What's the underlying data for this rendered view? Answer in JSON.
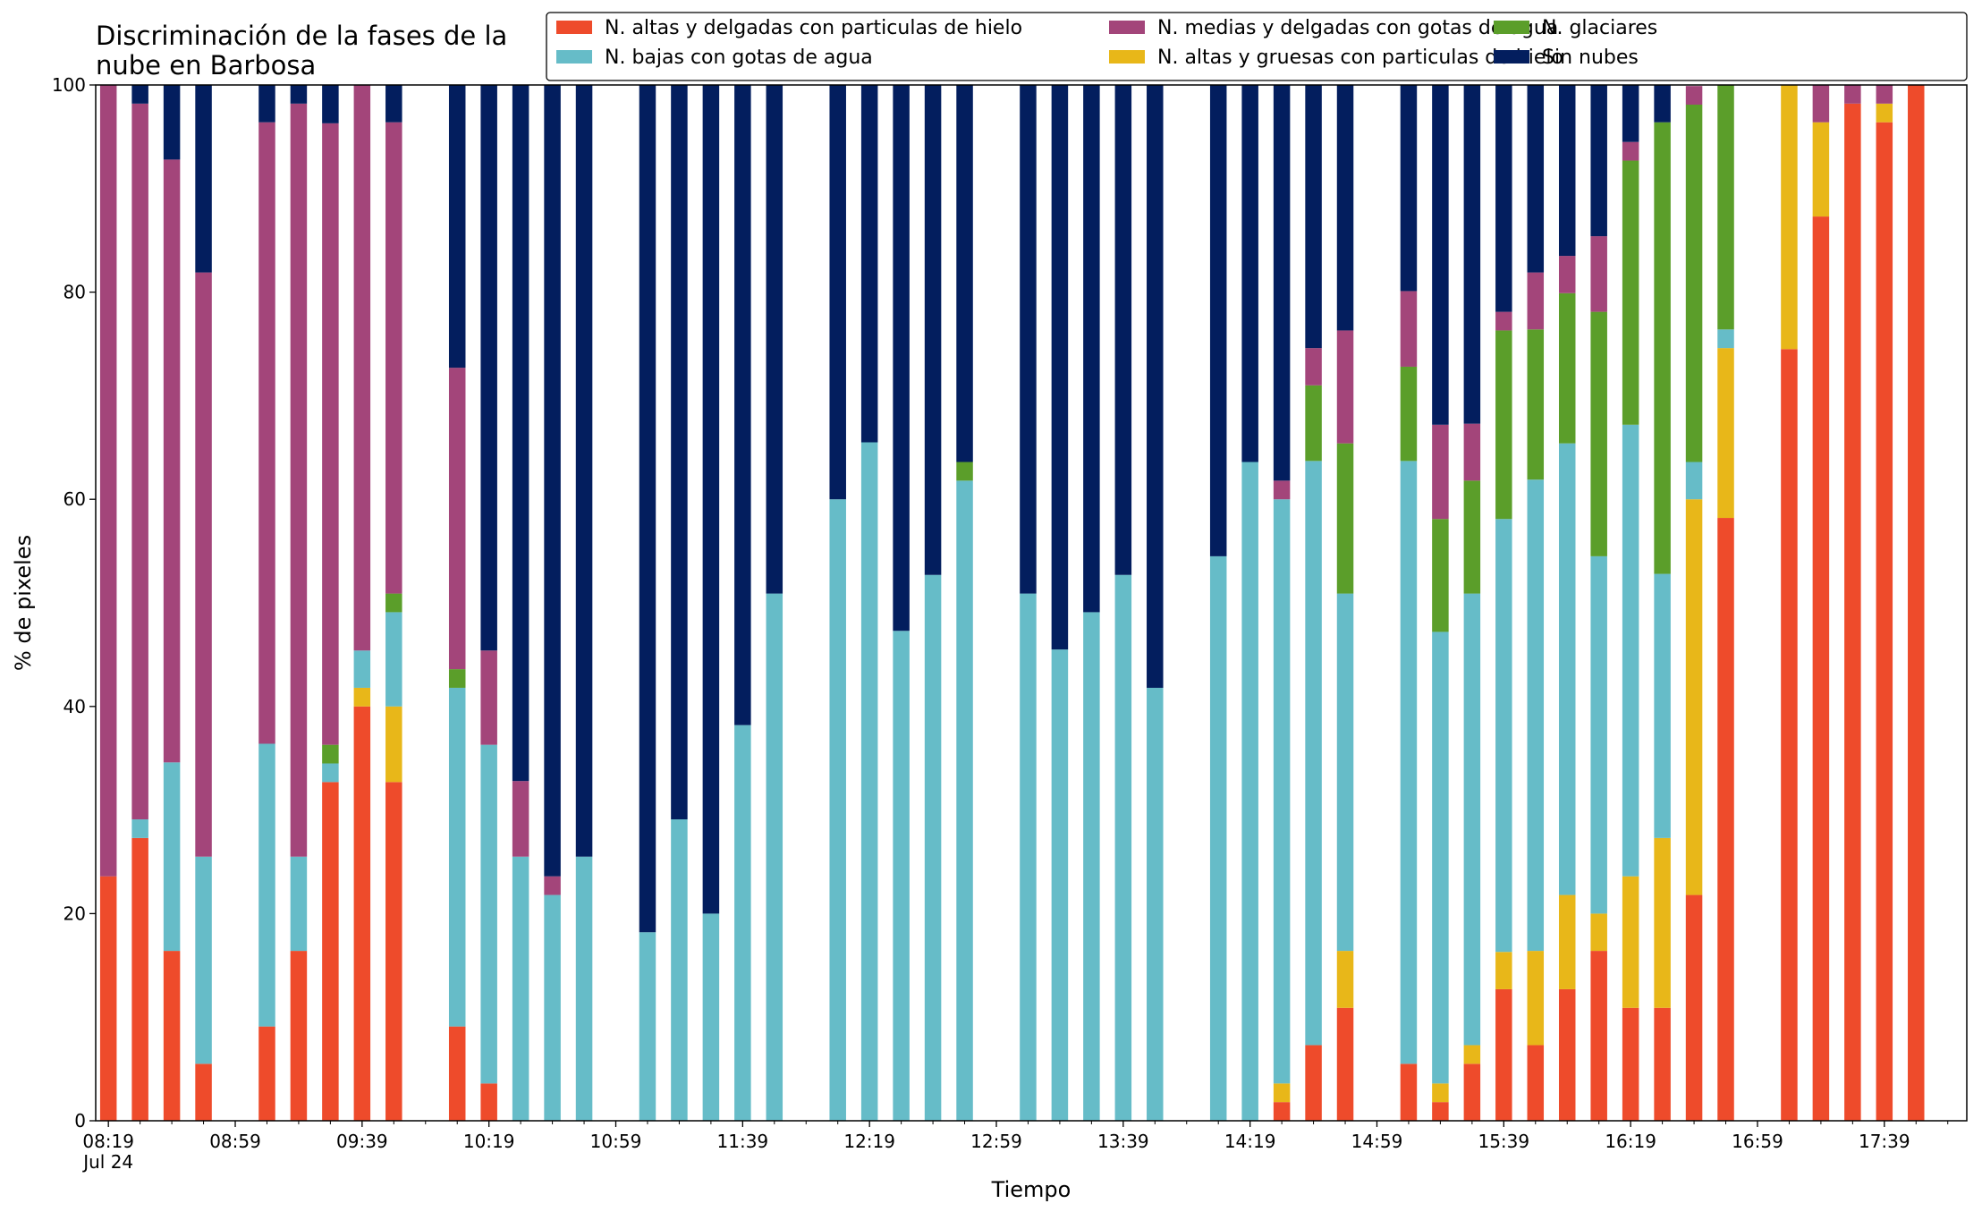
{
  "chart_data": {
    "type": "bar",
    "stacked": true,
    "title_lines": [
      "Discriminación de la fases de la",
      "nube en Barbosa"
    ],
    "xlabel": "Tiempo",
    "ylabel": "% de pixeles",
    "ylim": [
      0,
      100
    ],
    "yticks": [
      "0",
      "20",
      "40",
      "60",
      "80",
      "100"
    ],
    "xlim": [
      "08:15",
      "18:05"
    ],
    "xticks": [
      {
        "time": "08:19",
        "label": "08:19",
        "sublabel": "Jul 24"
      },
      {
        "time": "08:59",
        "label": "08:59"
      },
      {
        "time": "09:39",
        "label": "09:39"
      },
      {
        "time": "10:19",
        "label": "10:19"
      },
      {
        "time": "10:59",
        "label": "10:59"
      },
      {
        "time": "11:39",
        "label": "11:39"
      },
      {
        "time": "12:19",
        "label": "12:19"
      },
      {
        "time": "12:59",
        "label": "12:59"
      },
      {
        "time": "13:39",
        "label": "13:39"
      },
      {
        "time": "14:19",
        "label": "14:19"
      },
      {
        "time": "14:59",
        "label": "14:59"
      },
      {
        "time": "15:39",
        "label": "15:39"
      },
      {
        "time": "16:19",
        "label": "16:19"
      },
      {
        "time": "16:59",
        "label": "16:59"
      },
      {
        "time": "17:39",
        "label": "17:39"
      }
    ],
    "minor_tick_step_minutes": 10,
    "grid": false,
    "legend_position": "top-right",
    "series": [
      {
        "name": "N. altas y delgadas con particulas de hielo",
        "color": "#EE4B2B"
      },
      {
        "name": "N. altas y gruesas con particulas de hielo",
        "color": "#E8B719"
      },
      {
        "name": "N. bajas con gotas de agua",
        "color": "#66BCC8"
      },
      {
        "name": "N. glaciares",
        "color": "#5B9E2A"
      },
      {
        "name": "N. medias y delgadas con gotas de agua",
        "color": "#A3457A"
      },
      {
        "name": "Sin nubes",
        "color": "#031E5E"
      }
    ],
    "legend_order": [
      0,
      2,
      4,
      1,
      3,
      5
    ],
    "x": [
      "08:19",
      "08:29",
      "08:39",
      "08:49",
      "09:09",
      "09:19",
      "09:29",
      "09:39",
      "09:49",
      "10:09",
      "10:19",
      "10:29",
      "10:39",
      "10:49",
      "11:09",
      "11:19",
      "11:29",
      "11:39",
      "11:49",
      "12:09",
      "12:19",
      "12:29",
      "12:39",
      "12:49",
      "13:09",
      "13:19",
      "13:29",
      "13:39",
      "13:49",
      "14:09",
      "14:19",
      "14:29",
      "14:39",
      "14:49",
      "15:09",
      "15:19",
      "15:29",
      "15:39",
      "15:49",
      "15:59",
      "16:09",
      "16:19",
      "16:29",
      "16:39",
      "16:49",
      "17:09",
      "17:19",
      "17:29",
      "17:39",
      "17:49"
    ],
    "values": [
      [
        23.6,
        0,
        0,
        0,
        76.4,
        0
      ],
      [
        27.3,
        0,
        1.8,
        0,
        69.1,
        1.8
      ],
      [
        16.4,
        0,
        18.2,
        0,
        58.2,
        7.2
      ],
      [
        5.5,
        0,
        20.0,
        0,
        56.4,
        18.1
      ],
      [
        9.1,
        0,
        27.3,
        0,
        60.0,
        3.6
      ],
      [
        16.4,
        0,
        9.1,
        0,
        72.7,
        1.8
      ],
      [
        32.7,
        0,
        1.8,
        1.8,
        60.0,
        3.7
      ],
      [
        40.0,
        1.8,
        3.6,
        0,
        54.6,
        0
      ],
      [
        32.7,
        7.3,
        9.1,
        1.8,
        45.5,
        3.6
      ],
      [
        9.1,
        0,
        32.7,
        1.8,
        29.1,
        27.3
      ],
      [
        3.6,
        0,
        32.7,
        0,
        9.1,
        54.6
      ],
      [
        0,
        0,
        25.5,
        0,
        7.3,
        67.2
      ],
      [
        0,
        0,
        21.8,
        0,
        1.8,
        76.4
      ],
      [
        0,
        0,
        25.5,
        0,
        0,
        74.5
      ],
      [
        0,
        0,
        18.2,
        0,
        0,
        81.8
      ],
      [
        0,
        0,
        29.1,
        0,
        0,
        70.9
      ],
      [
        0,
        0,
        20.0,
        0,
        0,
        80.0
      ],
      [
        0,
        0,
        38.2,
        0,
        0,
        61.8
      ],
      [
        0,
        0,
        50.9,
        0,
        0,
        49.1
      ],
      [
        0,
        0,
        60.0,
        0,
        0,
        40.0
      ],
      [
        0,
        0,
        65.5,
        0,
        0,
        34.5
      ],
      [
        0,
        0,
        47.3,
        0,
        0,
        52.7
      ],
      [
        0,
        0,
        52.7,
        0,
        0,
        47.3
      ],
      [
        0,
        0,
        61.8,
        1.8,
        0,
        36.4
      ],
      [
        0,
        0,
        50.9,
        0,
        0,
        49.1
      ],
      [
        0,
        0,
        45.5,
        0,
        0,
        54.5
      ],
      [
        0,
        0,
        49.1,
        0,
        0,
        50.9
      ],
      [
        0,
        0,
        52.7,
        0,
        0,
        47.3
      ],
      [
        0,
        0,
        41.8,
        0,
        0,
        58.2
      ],
      [
        0,
        0,
        54.5,
        0,
        0,
        45.5
      ],
      [
        0,
        0,
        63.6,
        0,
        0,
        36.4
      ],
      [
        1.8,
        1.8,
        56.4,
        0,
        1.8,
        38.2
      ],
      [
        7.3,
        0,
        56.4,
        7.3,
        3.6,
        25.4
      ],
      [
        10.9,
        5.5,
        34.5,
        14.5,
        10.9,
        23.7
      ],
      [
        5.5,
        0,
        58.2,
        9.1,
        7.3,
        19.9
      ],
      [
        1.8,
        1.8,
        43.6,
        10.9,
        9.1,
        32.8
      ],
      [
        5.5,
        1.8,
        43.6,
        10.9,
        5.5,
        32.7
      ],
      [
        12.7,
        3.6,
        41.8,
        18.2,
        1.8,
        21.9
      ],
      [
        7.3,
        9.1,
        45.5,
        14.5,
        5.5,
        18.1
      ],
      [
        12.7,
        9.1,
        43.6,
        14.5,
        3.6,
        16.5
      ],
      [
        16.4,
        3.6,
        34.5,
        23.6,
        7.3,
        14.6
      ],
      [
        10.9,
        12.7,
        43.6,
        25.5,
        1.8,
        5.5
      ],
      [
        10.9,
        16.4,
        25.5,
        43.6,
        0,
        3.6
      ],
      [
        21.8,
        38.2,
        3.6,
        34.5,
        1.8,
        0
      ],
      [
        58.2,
        16.4,
        1.8,
        23.6,
        0,
        0
      ],
      [
        74.5,
        25.5,
        0,
        0,
        0,
        0
      ],
      [
        87.3,
        9.1,
        0,
        0,
        3.6,
        0
      ],
      [
        98.2,
        0,
        0,
        0,
        1.8,
        0
      ],
      [
        96.4,
        1.8,
        0,
        0,
        1.8,
        0
      ],
      [
        100,
        0,
        0,
        0,
        0,
        0
      ]
    ]
  }
}
